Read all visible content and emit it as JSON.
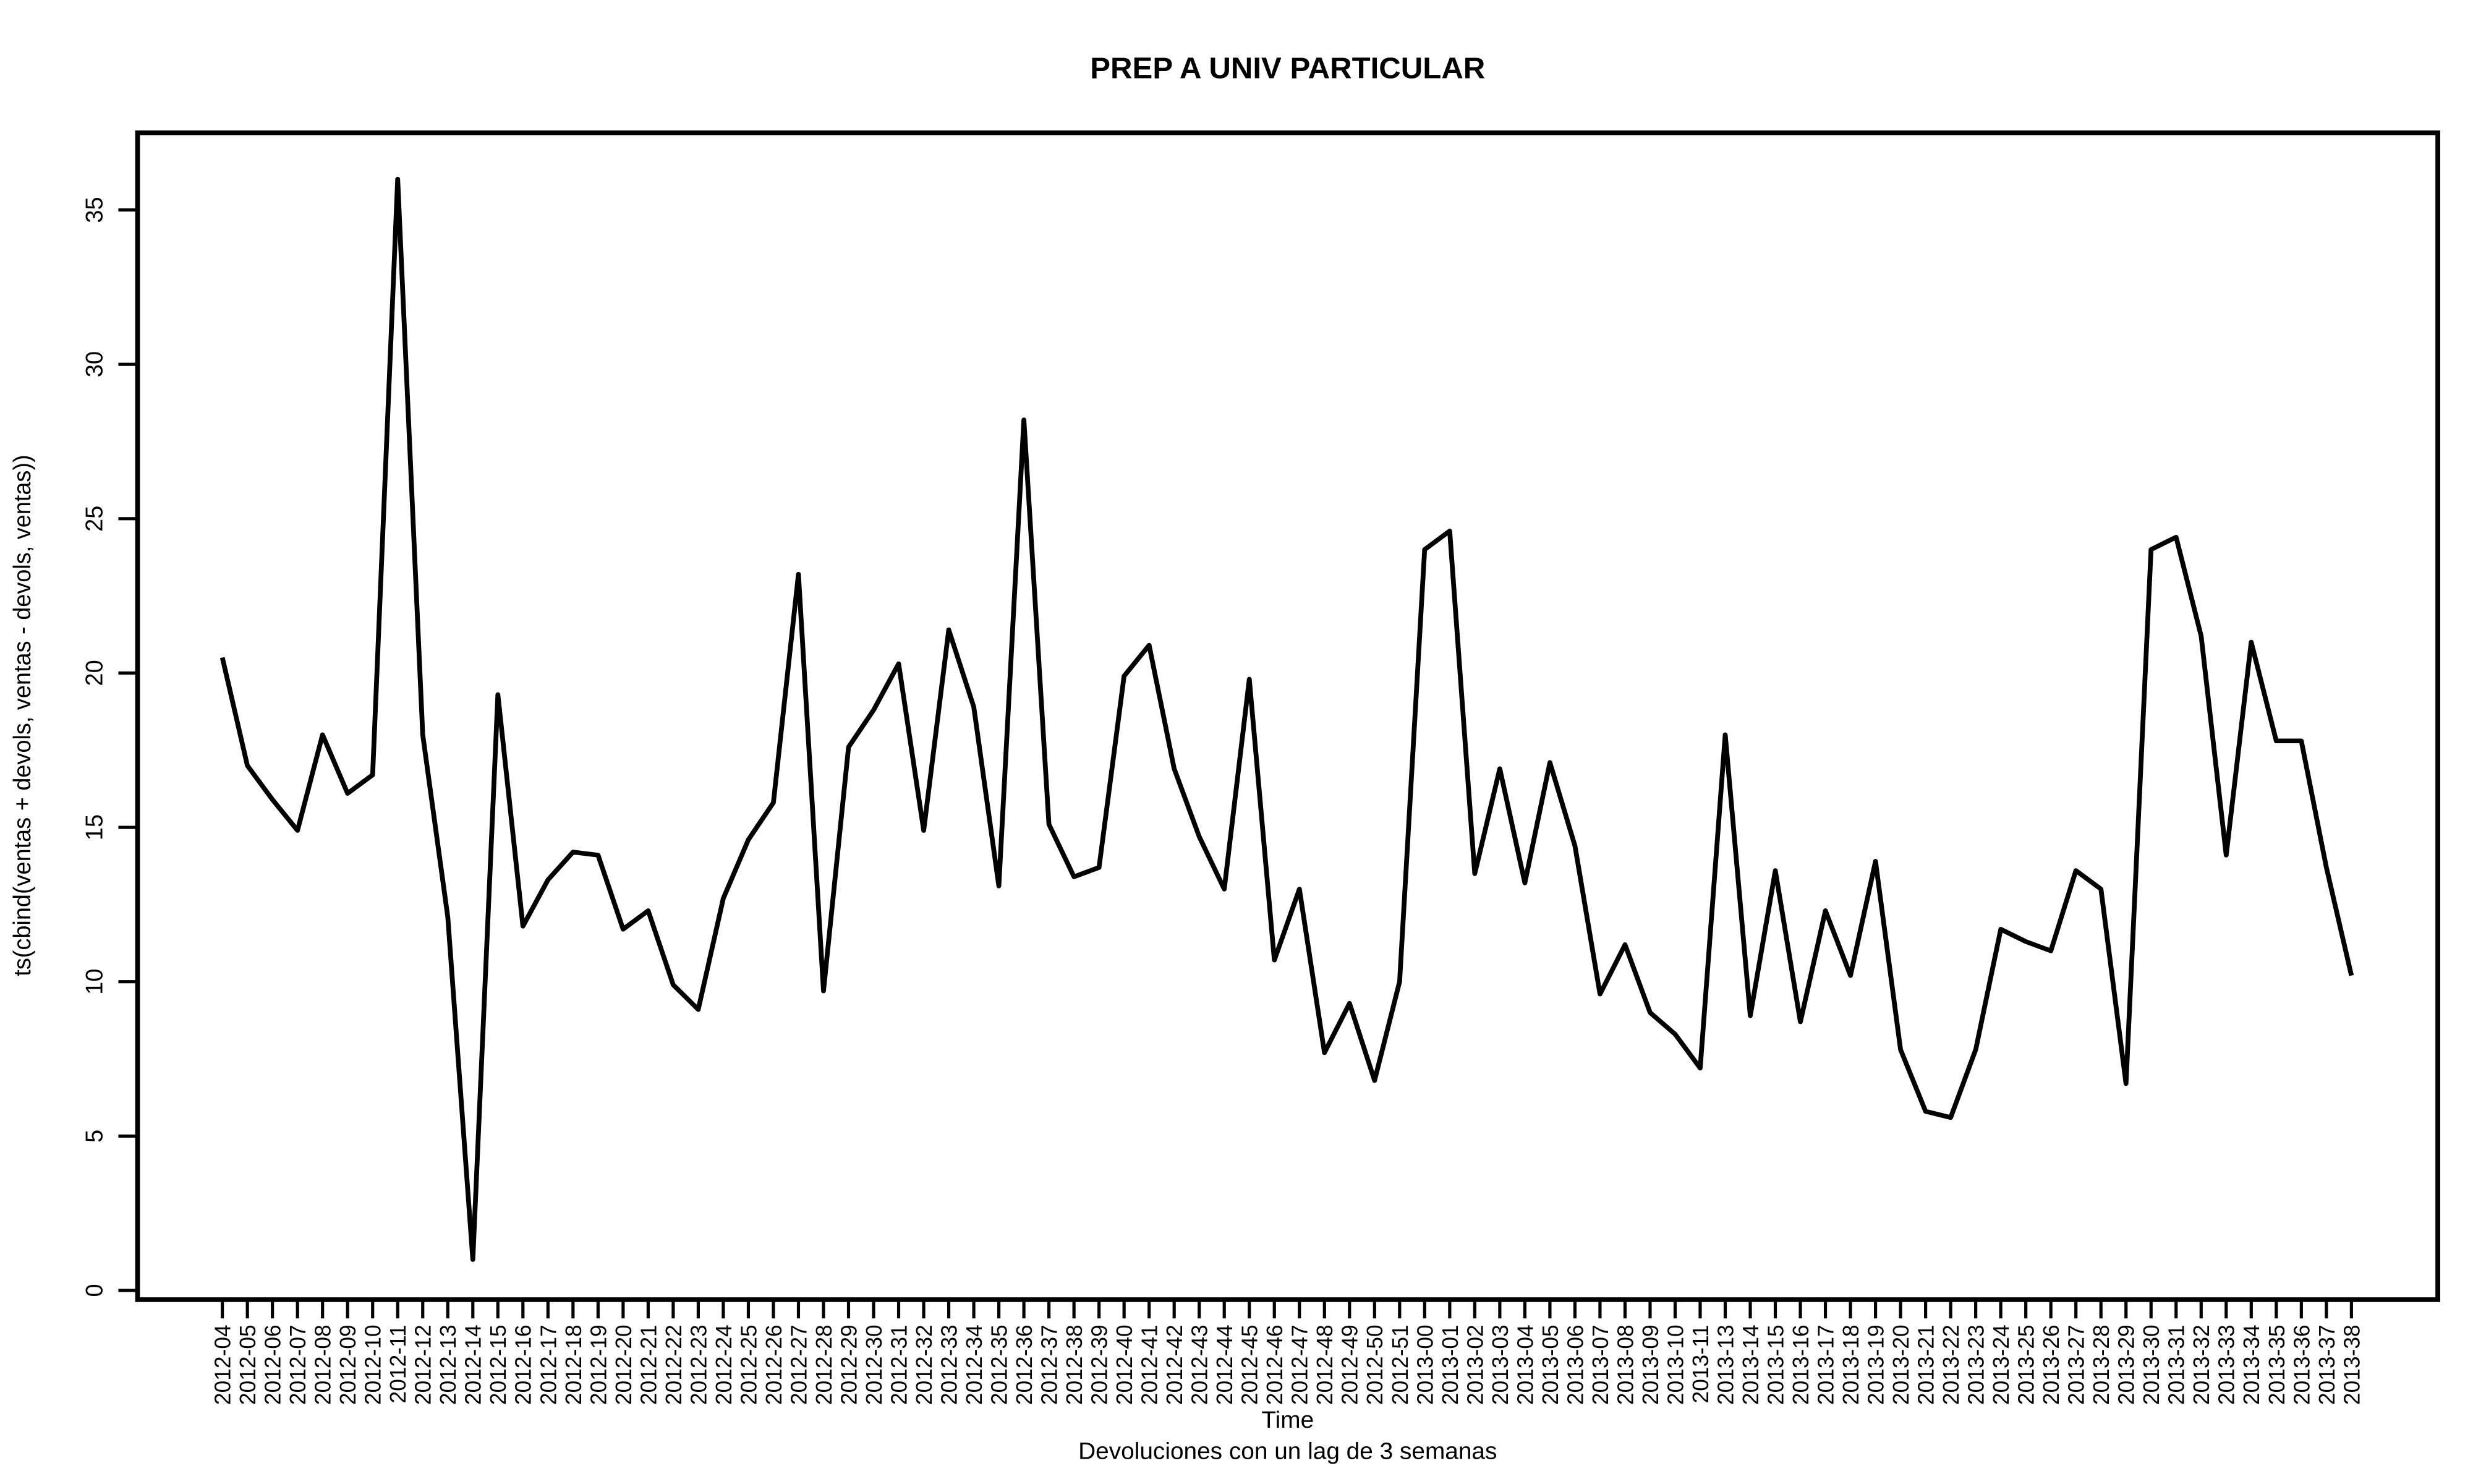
{
  "chart_data": {
    "type": "line",
    "title": "PREP A UNIV PARTICULAR",
    "x_label": "Time",
    "subtitle": "Devoluciones con un lag de 3 semanas",
    "y_label": "ts(cbind(ventas + devols, ventas - devols, ventas))",
    "categories": [
      "2012-04",
      "2012-05",
      "2012-06",
      "2012-07",
      "2012-08",
      "2012-09",
      "2012-10",
      "2012-11",
      "2012-12",
      "2012-13",
      "2012-14",
      "2012-15",
      "2012-16",
      "2012-17",
      "2012-18",
      "2012-19",
      "2012-20",
      "2012-21",
      "2012-22",
      "2012-23",
      "2012-24",
      "2012-25",
      "2012-26",
      "2012-27",
      "2012-28",
      "2012-29",
      "2012-30",
      "2012-31",
      "2012-32",
      "2012-33",
      "2012-34",
      "2012-35",
      "2012-36",
      "2012-37",
      "2012-38",
      "2012-39",
      "2012-40",
      "2012-41",
      "2012-42",
      "2012-43",
      "2012-44",
      "2012-45",
      "2012-46",
      "2012-47",
      "2012-48",
      "2012-49",
      "2012-50",
      "2012-51",
      "2013-00",
      "2013-01",
      "2013-02",
      "2013-03",
      "2013-04",
      "2013-05",
      "2013-06",
      "2013-07",
      "2013-08",
      "2013-09",
      "2013-10",
      "2013-11",
      "2013-13",
      "2013-14",
      "2013-15",
      "2013-16",
      "2013-17",
      "2013-18",
      "2013-19",
      "2013-20",
      "2013-21",
      "2013-22",
      "2013-23",
      "2013-24",
      "2013-25",
      "2013-26",
      "2013-27",
      "2013-28",
      "2013-29",
      "2013-30",
      "2013-31",
      "2013-32",
      "2013-33",
      "2013-34",
      "2013-35",
      "2013-36",
      "2013-37",
      "2013-38"
    ],
    "series": [
      {
        "name": "ventas",
        "color": "#000000",
        "values": [
          20.5,
          17.0,
          15.9,
          14.9,
          18.0,
          16.1,
          16.7,
          36.0,
          18.0,
          12.1,
          1.0,
          19.3,
          11.8,
          13.3,
          14.2,
          14.1,
          11.7,
          12.3,
          9.9,
          9.1,
          12.7,
          14.6,
          15.8,
          23.2,
          9.7,
          17.6,
          18.8,
          20.3,
          14.9,
          21.4,
          18.9,
          13.1,
          28.2,
          15.1,
          13.4,
          13.7,
          19.9,
          20.9,
          16.9,
          14.7,
          13.0,
          19.8,
          10.7,
          13.0,
          7.7,
          9.3,
          6.8,
          10.0,
          24.0,
          24.6,
          13.5,
          16.9,
          13.2,
          17.1,
          14.4,
          9.6,
          11.2,
          9.0,
          8.3,
          7.2,
          18.0,
          8.9,
          13.6,
          8.7,
          12.3,
          10.2,
          13.9,
          7.8,
          5.8,
          5.6,
          7.8,
          11.7,
          11.3,
          11.0,
          13.6,
          13.0,
          6.7,
          24.0,
          24.4,
          21.2,
          14.1,
          21.0,
          17.8,
          17.8,
          13.7,
          10.2
        ]
      }
    ],
    "ylim": [
      -0.3,
      37.5
    ],
    "yticks": [
      0,
      5,
      10,
      15,
      20,
      25,
      30,
      35
    ],
    "grid": false
  }
}
